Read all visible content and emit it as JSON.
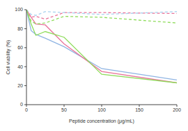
{
  "chart_data": {
    "type": "line",
    "x_label": "Peptide concentration (μg/mL)",
    "y_label": "Cell viability (%)",
    "x": [
      0,
      6.25,
      12.5,
      25,
      50,
      100,
      200
    ],
    "xlim": [
      0,
      200
    ],
    "xticks": [
      0,
      50,
      100,
      150,
      200
    ],
    "ylim": [
      0,
      100
    ],
    "yticks": [
      0,
      20,
      40,
      60,
      80,
      100
    ],
    "grid": false,
    "series": [
      {
        "color": "#8fb4e3",
        "line_style": "solid",
        "values": [
          100,
          78,
          74,
          70,
          61,
          38,
          26
        ]
      },
      {
        "color": "#e8739a",
        "line_style": "solid",
        "values": [
          100,
          92,
          85,
          84,
          64,
          35,
          23
        ]
      },
      {
        "color": "#8fdc5c",
        "line_style": "solid",
        "values": [
          100,
          85,
          73,
          77,
          71,
          32,
          23
        ]
      },
      {
        "color": "#e8739a",
        "line_style": "dashed",
        "values": [
          100,
          92,
          93,
          90,
          97,
          97,
          96
        ]
      },
      {
        "color": "#a9d3f0",
        "line_style": "dashed",
        "values": [
          100,
          95,
          94,
          98,
          97,
          95,
          98
        ]
      },
      {
        "color": "#8fdc5c",
        "line_style": "dashed",
        "values": [
          100,
          88,
          85,
          86,
          93,
          92,
          86
        ]
      }
    ]
  }
}
